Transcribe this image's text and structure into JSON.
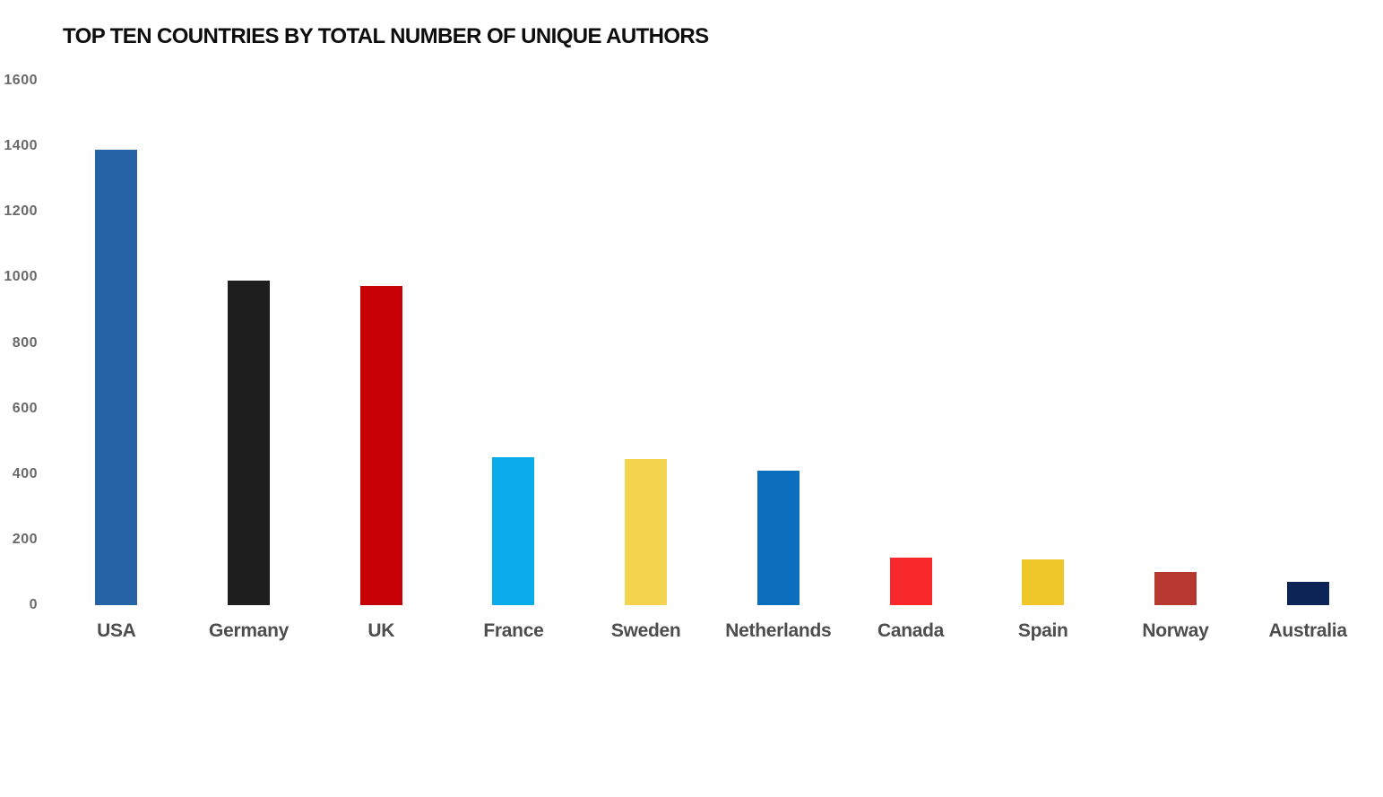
{
  "chart_data": {
    "type": "bar",
    "title": "TOP TEN COUNTRIES BY TOTAL NUMBER OF UNIQUE AUTHORS",
    "categories": [
      "USA",
      "Germany",
      "UK",
      "France",
      "Sweden",
      "Netherlands",
      "Canada",
      "Spain",
      "Norway",
      "Australia"
    ],
    "values": [
      1390,
      990,
      975,
      450,
      445,
      410,
      145,
      140,
      100,
      70
    ],
    "bar_colors": [
      "#2563A6",
      "#1E1E1E",
      "#C70006",
      "#0AACEA",
      "#F5D450",
      "#0A6EBD",
      "#F9292B",
      "#EFC72B",
      "#B7382E",
      "#0D2456"
    ],
    "xlabel": "",
    "ylabel": "",
    "ylim": [
      0,
      1600
    ],
    "yticks": [
      0,
      200,
      400,
      600,
      800,
      1000,
      1200,
      1400,
      1600
    ],
    "grid": false,
    "legend_position": "none",
    "background_color": "#ffffff",
    "title_color": "#0d0d0d",
    "axis_label_color": "#4d4d4d",
    "tick_label_color": "#696969"
  }
}
